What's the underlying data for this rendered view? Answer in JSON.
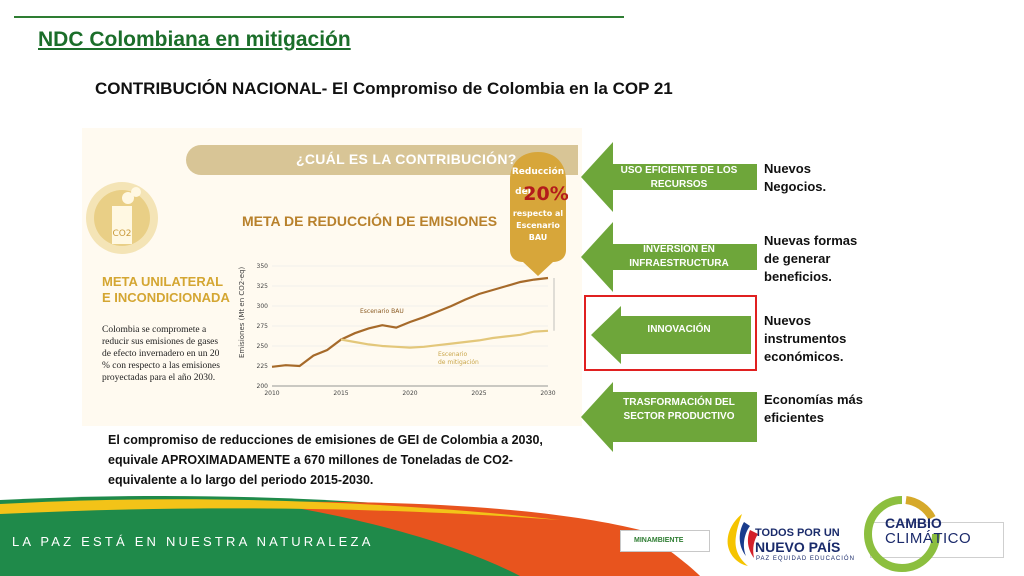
{
  "slide": {
    "title": "NDC Colombiana en mitigación",
    "subtitle": "CONTRIBUCIÓN NACIONAL- El Compromiso de Colombia en la COP 21"
  },
  "infographic": {
    "question_banner": "¿CUÁL ES LA CONTRIBUCIÓN?",
    "co2_label": "CO2",
    "meta_title_line1": "META UNILATERAL",
    "meta_title_line2": "E INCONDICIONADA",
    "meta_body": "Colombia se compromete a reducir sus emisiones de gases de efecto invernadero en un 20 % con respecto a las emisiones proyectadas para el año 2030.",
    "chart_title": "META DE REDUCCIÓN DE EMISIONES",
    "badge": {
      "line1": "Reducción",
      "line2": "del",
      "value": "20%",
      "line3": "respecto al",
      "line4": "Escenario",
      "line5": "BAU"
    }
  },
  "chart_data": {
    "type": "line",
    "title": "META DE REDUCCIÓN DE EMISIONES",
    "ylabel": "Emisiones (Mt en CO2-eq)",
    "xlabel": "",
    "ylim": [
      200,
      350
    ],
    "xlim": [
      2010,
      2030
    ],
    "yticks": [
      200,
      225,
      250,
      275,
      300,
      325,
      350
    ],
    "xticks": [
      2010,
      2015,
      2020,
      2025,
      2030
    ],
    "series": [
      {
        "name": "Escenario BAU",
        "color": "#a66a2a",
        "x": [
          2010,
          2011,
          2012,
          2013,
          2014,
          2015,
          2016,
          2017,
          2018,
          2019,
          2020,
          2021,
          2022,
          2023,
          2024,
          2025,
          2026,
          2027,
          2028,
          2029,
          2030
        ],
        "values": [
          224,
          226,
          225,
          238,
          245,
          258,
          266,
          272,
          276,
          273,
          280,
          286,
          293,
          300,
          308,
          315,
          320,
          325,
          330,
          333,
          335
        ]
      },
      {
        "name": "Escenario de mitigación",
        "color": "#e3c77a",
        "x": [
          2015,
          2016,
          2017,
          2018,
          2019,
          2020,
          2021,
          2022,
          2023,
          2024,
          2025,
          2026,
          2027,
          2028,
          2029,
          2030
        ],
        "values": [
          258,
          255,
          252,
          250,
          249,
          248,
          249,
          251,
          253,
          255,
          257,
          260,
          262,
          264,
          268,
          269
        ]
      }
    ],
    "annotations": [
      "Escenario BAU",
      "Escenario de mitigación"
    ]
  },
  "footnote": "El compromiso de reducciones de emisiones de GEI de Colombia a 2030,  equivale APROXIMADAMENTE a 670 millones de Toneladas de CO2-equivalente a lo largo del periodo 2015-2030.",
  "arrows": [
    {
      "label": "USO EFICIENTE DE LOS RECURSOS",
      "benefit": "Nuevos Negocios.",
      "color": "#6ea63a"
    },
    {
      "label": "INVERSIÓN EN INFRAESTRUCTURA",
      "benefit": "Nuevas formas de generar beneficios.",
      "color": "#6ea63a"
    },
    {
      "label": "INNOVACIÓN",
      "benefit": "Nuevos instrumentos económicos.",
      "color": "#6ea63a",
      "highlighted": true
    },
    {
      "label": "TRASFORMACIÓN DEL SECTOR PRODUCTIVO",
      "benefit": "Economías más eficientes",
      "color": "#6ea63a"
    }
  ],
  "footer": {
    "slogan": "LA PAZ ESTÁ EN NUESTRA NATURALEZA",
    "minambiente": "MINAMBIENTE",
    "todos_line1": "TODOS POR UN",
    "todos_line2": "NUEVO PAÍS",
    "todos_tagline": "PAZ  EQUIDAD  EDUCACIÓN",
    "cc_line1": "CAMBIO",
    "cc_line2": "CLIMÁTICO"
  },
  "colors": {
    "title_green": "#1b6e2a",
    "arrow_green": "#6ea63a",
    "highlight_red": "#e02020",
    "footer_green": "#1f8a4a",
    "footer_orange": "#e8541e"
  }
}
